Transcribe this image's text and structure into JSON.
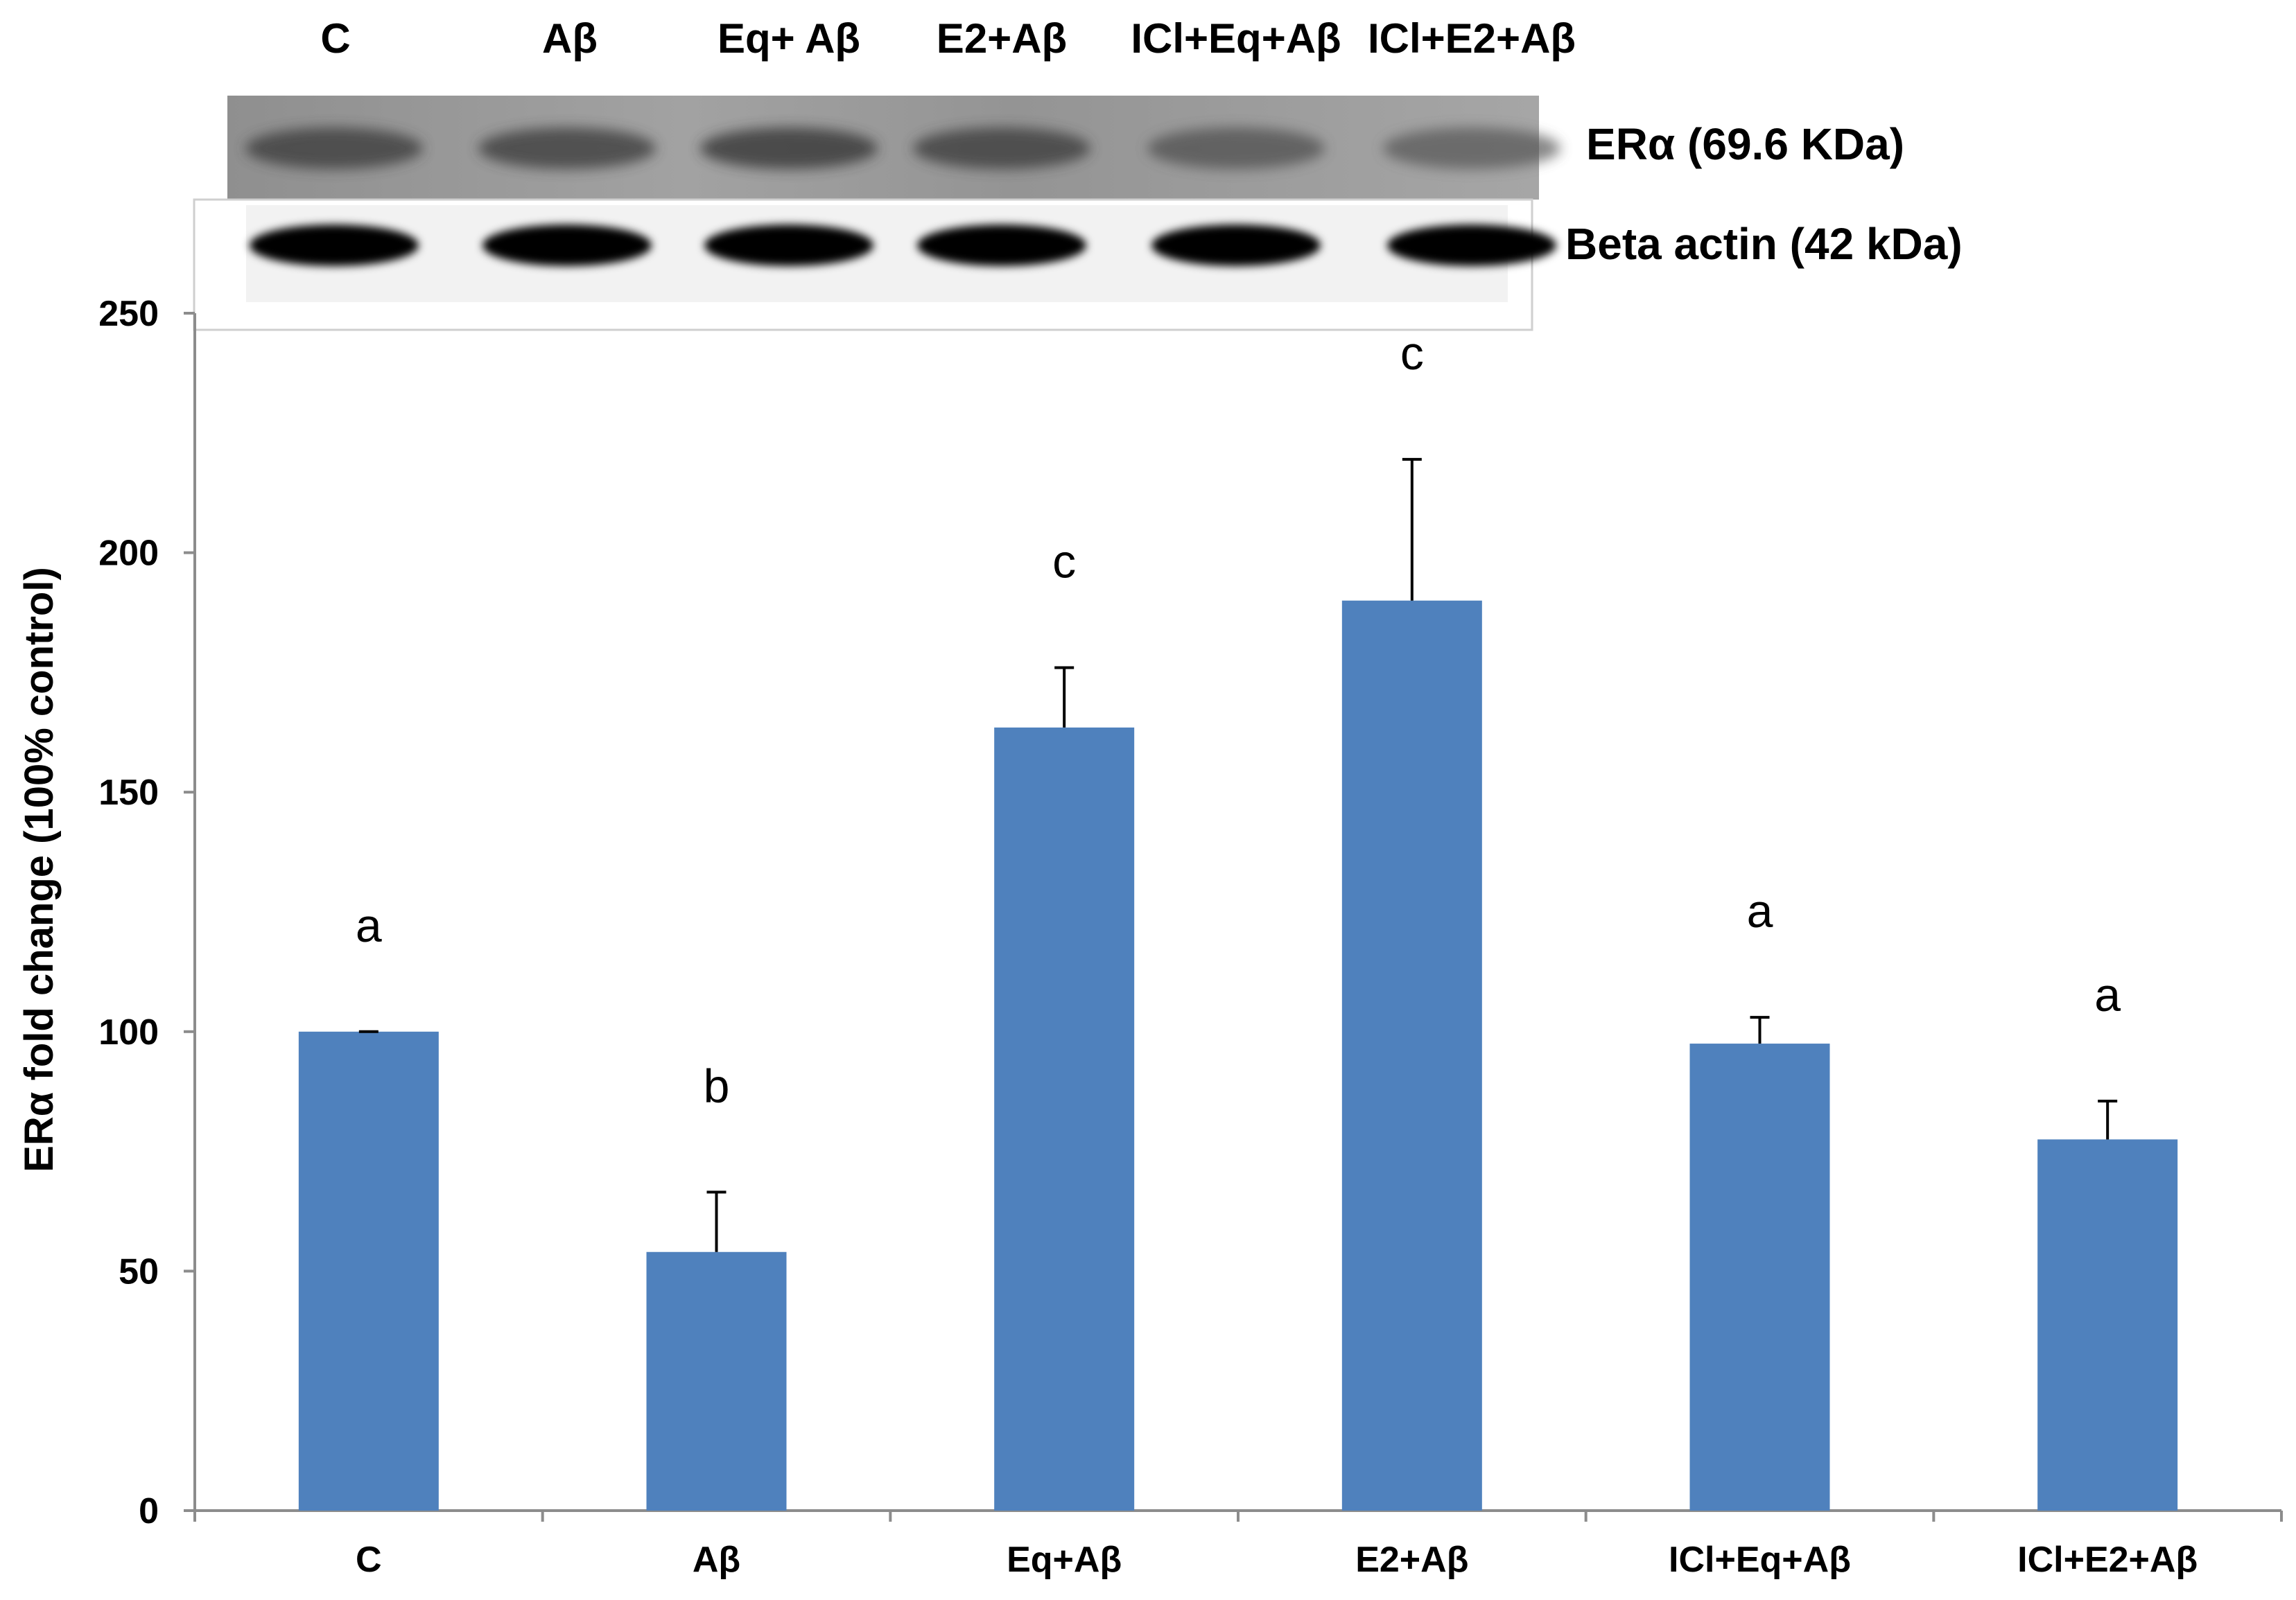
{
  "chart_data": {
    "type": "bar",
    "categories": [
      "C",
      "Aβ",
      "Eq+Aβ",
      "E2+Aβ",
      "ICl+Eq+Aβ",
      "ICl+E2+Aβ"
    ],
    "values": [
      100,
      54,
      163.5,
      190,
      97.5,
      77.5
    ],
    "errors": [
      0,
      12.5,
      12.5,
      29.5,
      5.5,
      8
    ],
    "significance": [
      "a",
      "b",
      "c",
      "c",
      "a",
      "a"
    ],
    "bar_color": "#4f81bd",
    "xlabel": "",
    "ylabel": "ERα fold change (100% control)",
    "ylim": [
      0,
      250
    ],
    "yticks": [
      "0",
      "50",
      "100",
      "150",
      "200",
      "250"
    ],
    "grid": false,
    "legend": "none"
  },
  "blot": {
    "lane_labels": [
      "C",
      "Aβ",
      "Eq+ Aβ",
      "E2+Aβ",
      "ICl+Eq+Aβ",
      "ICl+E2+Aβ"
    ],
    "bands": [
      {
        "label": "ERα (69.6 KDa)",
        "intensity": [
          0.55,
          0.55,
          0.6,
          0.55,
          0.4,
          0.35
        ],
        "background": "#9a9a9a"
      },
      {
        "label": "Beta actin (42 kDa)",
        "intensity": [
          1,
          1,
          1,
          1,
          1,
          1
        ],
        "background": "#ffffff"
      }
    ]
  }
}
